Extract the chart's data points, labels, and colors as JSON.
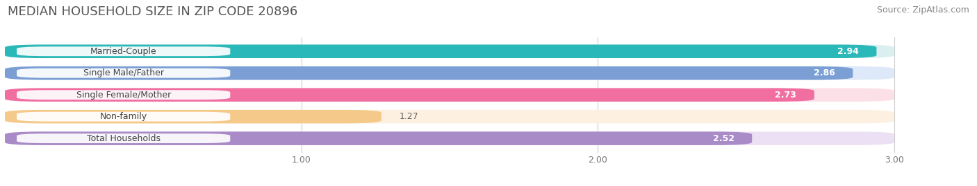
{
  "title": "MEDIAN HOUSEHOLD SIZE IN ZIP CODE 20896",
  "source": "Source: ZipAtlas.com",
  "categories": [
    "Married-Couple",
    "Single Male/Father",
    "Single Female/Mother",
    "Non-family",
    "Total Households"
  ],
  "values": [
    2.94,
    2.86,
    2.73,
    1.27,
    2.52
  ],
  "bar_colors": [
    "#2ab8b8",
    "#7b9fd4",
    "#f06fa0",
    "#f5c98a",
    "#a98bc8"
  ],
  "bar_bg_colors": [
    "#daf0f0",
    "#dde8f8",
    "#fce0e8",
    "#fdf0e0",
    "#ece0f5"
  ],
  "xlim": [
    0,
    3.18
  ],
  "xlim_display": [
    0,
    3.0
  ],
  "xticks": [
    1.0,
    2.0,
    3.0
  ],
  "title_fontsize": 13,
  "source_fontsize": 9,
  "label_fontsize": 9,
  "value_fontsize": 9,
  "background_color": "#ffffff",
  "bar_height": 0.62,
  "figsize": [
    14.06,
    2.69
  ]
}
